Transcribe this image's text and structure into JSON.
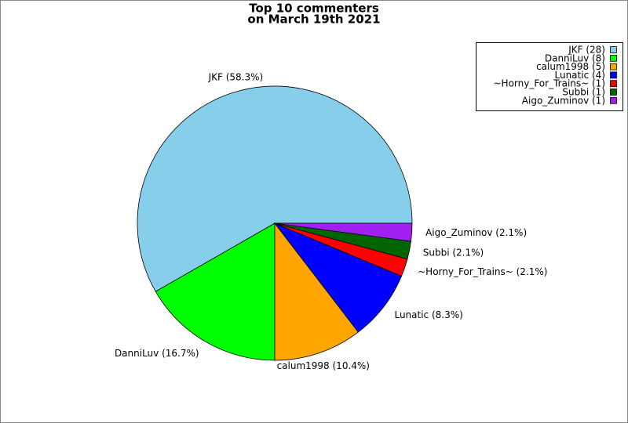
{
  "chart_data": {
    "type": "pie",
    "title": [
      "Top 10 commenters",
      "on March 19th 2021"
    ],
    "categories": [
      "JKF (28)",
      "DanniLuv (8)",
      "calum1998 (5)",
      "Lunatic (4)",
      "~Horny_For_Trains~ (1)",
      "Subbi (1)",
      "Aigo_Zuminov (1)"
    ],
    "values": [
      58.3,
      16.7,
      10.4,
      8.3,
      2.1,
      2.1,
      2.1
    ],
    "value_labels": [
      "JKF (58.3%)",
      "DanniLuv (16.7%)",
      "calum1998 (10.4%)",
      "Lunatic (8.3%)",
      "~Horny_For_Trains~ (2.1%)",
      "Subbi (2.1%)",
      "Aigo_Zuminov (2.1%)"
    ],
    "colors": [
      "#87ceeb",
      "#00ff00",
      "#ffa500",
      "#0000ff",
      "#ff0000",
      "#006400",
      "#a020f0"
    ],
    "legend": "upper right"
  }
}
